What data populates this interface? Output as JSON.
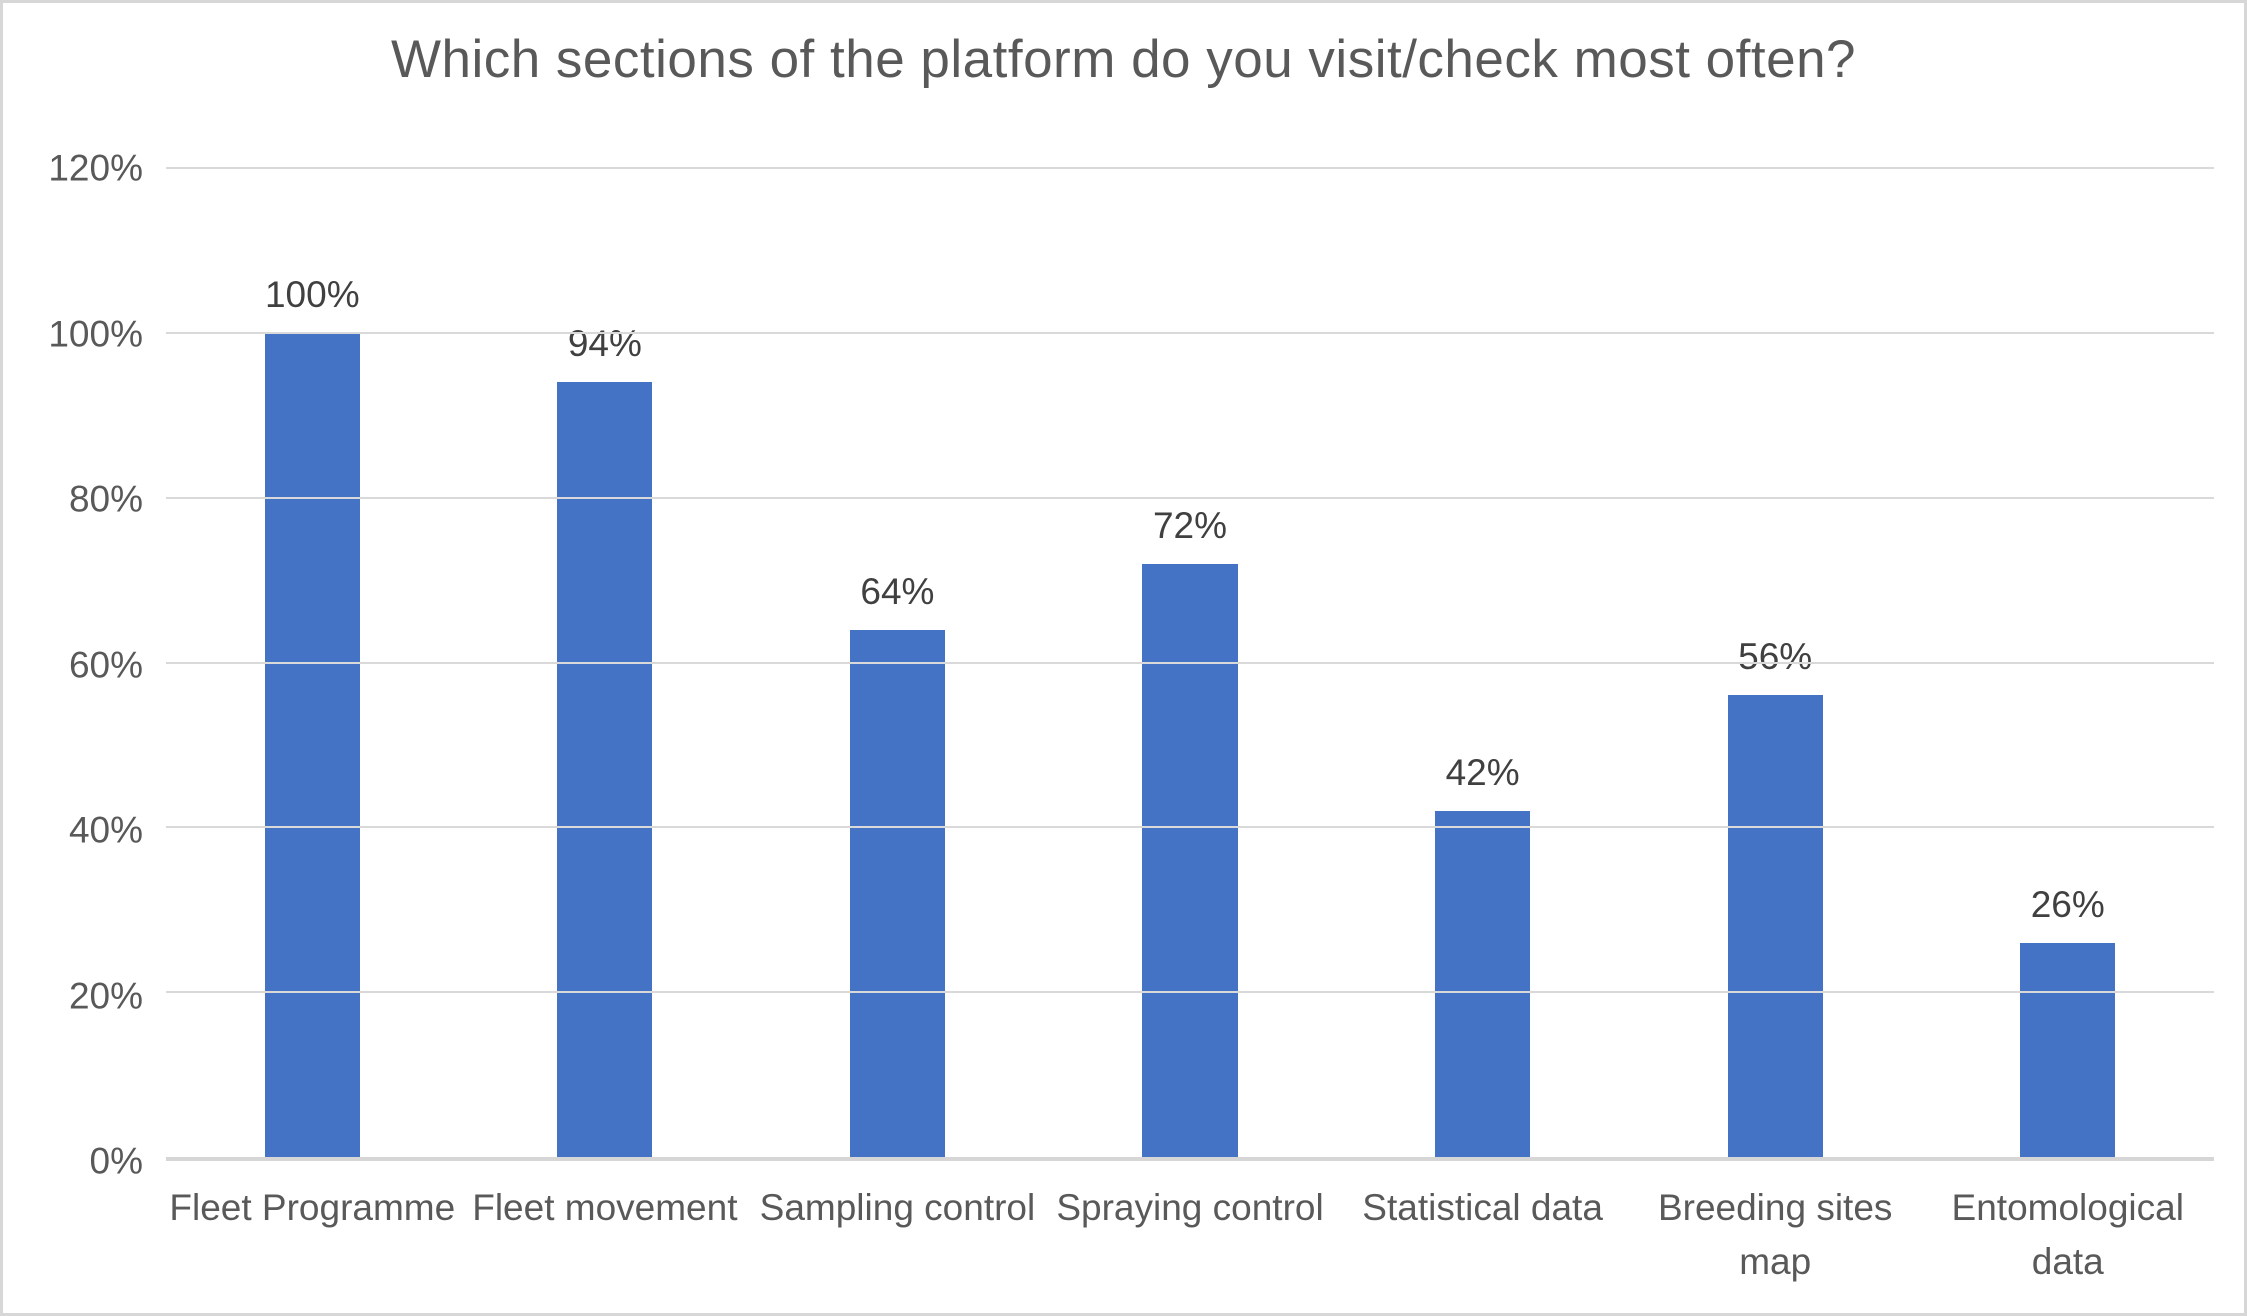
{
  "chart": {
    "title": "Which sections of the platform do you visit/check most often?"
  },
  "chart_data": {
    "type": "bar",
    "title": "Which sections of the platform do you visit/check most often?",
    "categories": [
      "Fleet Programme",
      "Fleet movement",
      "Sampling control",
      "Spraying control",
      "Statistical data",
      "Breeding sites map",
      "Entomological data"
    ],
    "tick_labels": [
      "Fleet Programme",
      "Fleet movement",
      "Sampling control",
      "Spraying control",
      "Statistical data",
      "Breeding sites\nmap",
      "Entomological\ndata"
    ],
    "values": [
      100,
      94,
      64,
      72,
      42,
      56,
      26
    ],
    "value_labels": [
      "100%",
      "94%",
      "64%",
      "72%",
      "42%",
      "56%",
      "26%"
    ],
    "xlabel": "",
    "ylabel": "",
    "ylim": [
      0,
      120
    ],
    "y_ticks": [
      "120%",
      "100%",
      "80%",
      "60%",
      "40%",
      "20%",
      "0%"
    ],
    "grid": true,
    "legend": false,
    "colors": {
      "bar": "#4472c4",
      "gridline": "#d9d9d9",
      "axis_line": "#d6d6d6",
      "axis_text": "#595959",
      "data_label_text": "#404040",
      "title_text": "#595959",
      "frame_border": "#d7d7d7"
    }
  }
}
